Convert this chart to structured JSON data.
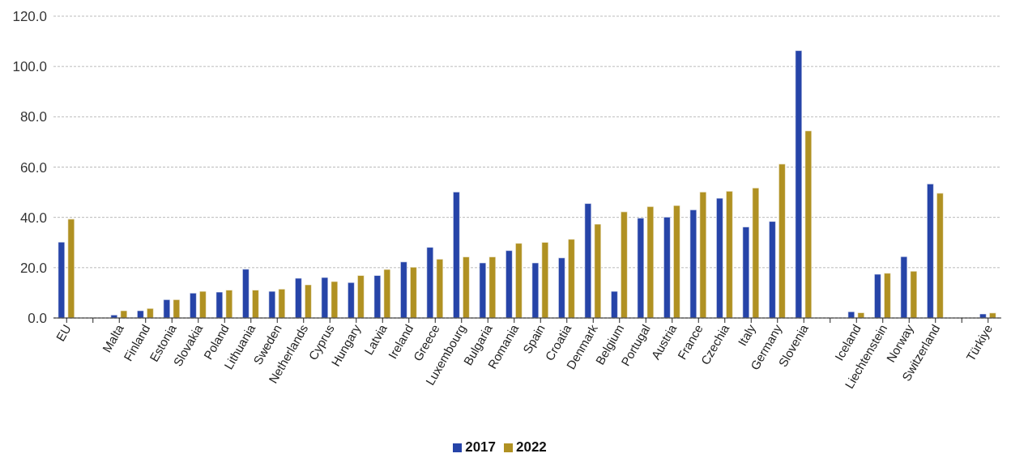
{
  "chart_data": {
    "type": "bar",
    "categories": [
      "EU",
      null,
      "Malta",
      "Finland",
      "Estonia",
      "Slovakia",
      "Poland",
      "Lithuania",
      "Sweden",
      "Netherlands",
      "Cyprus",
      "Hungary",
      "Latvia",
      "Ireland",
      "Greece",
      "Luxembourg",
      "Bulgaria",
      "Romania",
      "Spain",
      "Croatia",
      "Denmark",
      "Belgium",
      "Portugal",
      "Austria",
      "France",
      "Czechia",
      "Italy",
      "Germany",
      "Slovenia",
      null,
      "Iceland",
      "Liechtenstein",
      "Norway",
      "Switzerland",
      null,
      "Türkiye"
    ],
    "series": [
      {
        "name": "2017",
        "color": "#2644a8",
        "values": [
          30.2,
          null,
          1.2,
          2.9,
          7.3,
          9.9,
          10.3,
          19.4,
          10.6,
          15.8,
          16.1,
          14.1,
          16.9,
          22.3,
          28.1,
          50.1,
          21.9,
          26.8,
          21.9,
          23.9,
          45.5,
          10.6,
          39.7,
          40.1,
          43.0,
          47.6,
          36.2,
          38.4,
          106.3,
          null,
          2.5,
          17.4,
          24.4,
          53.3,
          null,
          1.6
        ]
      },
      {
        "name": "2022",
        "color": "#b09122",
        "values": [
          39.3,
          null,
          2.9,
          3.8,
          7.3,
          10.6,
          11.1,
          11.1,
          11.5,
          13.2,
          14.5,
          16.9,
          19.3,
          20.2,
          23.4,
          24.3,
          24.3,
          29.7,
          30.1,
          31.3,
          37.3,
          42.2,
          44.3,
          44.7,
          50.1,
          50.4,
          51.7,
          61.2,
          74.4,
          null,
          2.1,
          17.8,
          18.6,
          49.6,
          null,
          2.0
        ]
      }
    ],
    "ylim": [
      0,
      120
    ],
    "yticks": [
      {
        "value": 0,
        "label": "0.0"
      },
      {
        "value": 20,
        "label": "20.0"
      },
      {
        "value": 40,
        "label": "40.0"
      },
      {
        "value": 60,
        "label": "60.0"
      },
      {
        "value": 80,
        "label": "80.0"
      },
      {
        "value": 100,
        "label": "100.0"
      },
      {
        "value": 120,
        "label": "120.0"
      }
    ],
    "grid": "y",
    "legend": "bottom"
  }
}
